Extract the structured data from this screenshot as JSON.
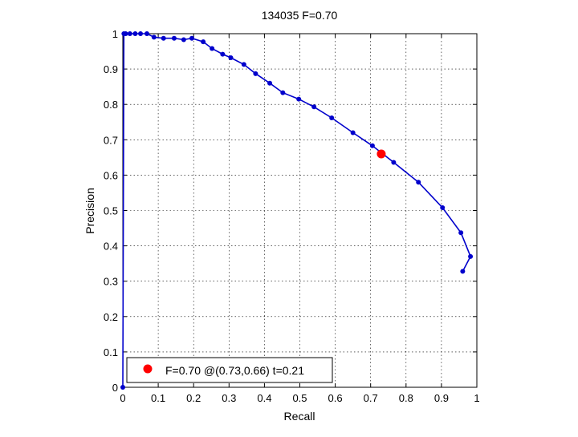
{
  "chart_data": {
    "type": "line",
    "title": "134035 F=0.70",
    "xlabel": "Recall",
    "ylabel": "Precision",
    "xlim": [
      0,
      1
    ],
    "ylim": [
      0,
      1
    ],
    "xticks": [
      "0",
      "0.1",
      "0.2",
      "0.3",
      "0.4",
      "0.5",
      "0.6",
      "0.7",
      "0.8",
      "0.9",
      "1"
    ],
    "yticks": [
      "0",
      "0.1",
      "0.2",
      "0.3",
      "0.4",
      "0.5",
      "0.6",
      "0.7",
      "0.8",
      "0.9",
      "1"
    ],
    "grid": true,
    "legend_position": "bottom-left",
    "series": [
      {
        "color": "#0000cc",
        "points": [
          [
            0.0,
            0.0
          ],
          [
            0.003,
            1.0
          ],
          [
            0.008,
            1.0
          ],
          [
            0.02,
            1.0
          ],
          [
            0.035,
            1.0
          ],
          [
            0.05,
            1.0
          ],
          [
            0.068,
            1.0
          ],
          [
            0.088,
            0.99
          ],
          [
            0.115,
            0.987
          ],
          [
            0.145,
            0.987
          ],
          [
            0.172,
            0.983
          ],
          [
            0.195,
            0.987
          ],
          [
            0.227,
            0.977
          ],
          [
            0.252,
            0.958
          ],
          [
            0.282,
            0.942
          ],
          [
            0.305,
            0.932
          ],
          [
            0.342,
            0.913
          ],
          [
            0.375,
            0.887
          ],
          [
            0.415,
            0.86
          ],
          [
            0.452,
            0.833
          ],
          [
            0.497,
            0.815
          ],
          [
            0.54,
            0.793
          ],
          [
            0.59,
            0.762
          ],
          [
            0.65,
            0.72
          ],
          [
            0.705,
            0.683
          ],
          [
            0.765,
            0.636
          ],
          [
            0.835,
            0.58
          ],
          [
            0.903,
            0.508
          ],
          [
            0.955,
            0.437
          ],
          [
            0.982,
            0.37
          ],
          [
            0.96,
            0.328
          ]
        ]
      }
    ],
    "highlight": {
      "recall": 0.73,
      "precision": 0.66,
      "color": "#ff0000",
      "label": "F=0.70 @(0.73,0.66) t=0.21"
    }
  }
}
